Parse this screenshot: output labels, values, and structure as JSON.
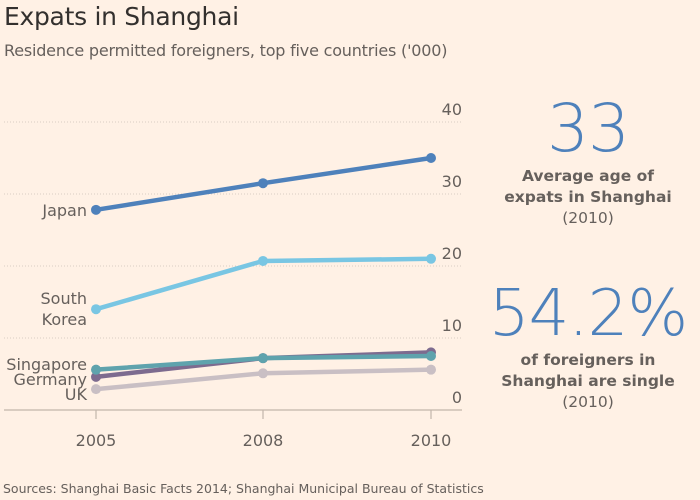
{
  "header": {
    "title": "Expats in Shanghai",
    "subtitle": "Residence permitted foreigners, top five countries ('000)"
  },
  "chart_data": {
    "type": "line",
    "title": "Expats in Shanghai",
    "subtitle": "Residence permitted foreigners, top five countries ('000)",
    "xlabel": "",
    "ylabel": "",
    "x": [
      "2005",
      "2008",
      "2010"
    ],
    "ylim": [
      0,
      40
    ],
    "yticks": [
      0,
      10,
      20,
      30,
      40
    ],
    "grid": true,
    "y_axis_side": "right",
    "legend": "inline-left",
    "series": [
      {
        "name": "Japan",
        "label_lines": [
          "Japan"
        ],
        "color": "#4e81bb",
        "values": [
          27.8,
          31.5,
          35.0
        ]
      },
      {
        "name": "South Korea",
        "label_lines": [
          "South",
          "Korea"
        ],
        "color": "#79c6e3",
        "values": [
          14.0,
          20.7,
          21.0
        ]
      },
      {
        "name": "UK",
        "label_lines": [
          "UK"
        ],
        "color": "#c9bfc4",
        "values": [
          2.9,
          5.1,
          5.6
        ]
      },
      {
        "name": "Germany",
        "label_lines": [
          "Germany"
        ],
        "color": "#7d6b8f",
        "values": [
          4.6,
          7.2,
          8.0
        ]
      },
      {
        "name": "Singapore",
        "label_lines": [
          "Singapore"
        ],
        "color": "#5fa3ad",
        "values": [
          5.6,
          7.2,
          7.5
        ]
      }
    ]
  },
  "stats": [
    {
      "value": "33",
      "description_lines": [
        "Average age of",
        "expats in Shanghai"
      ],
      "year": "(2010)"
    },
    {
      "value": "54.2%",
      "description_lines": [
        "of foreigners in",
        "Shanghai are single"
      ],
      "year": "(2010)"
    }
  ],
  "colors": {
    "background": "#fff1e5",
    "accent": "#4e81bb"
  },
  "footer": {
    "source": "Sources: Shanghai Basic Facts 2014; Shanghai Municipal Bureau of Statistics"
  }
}
